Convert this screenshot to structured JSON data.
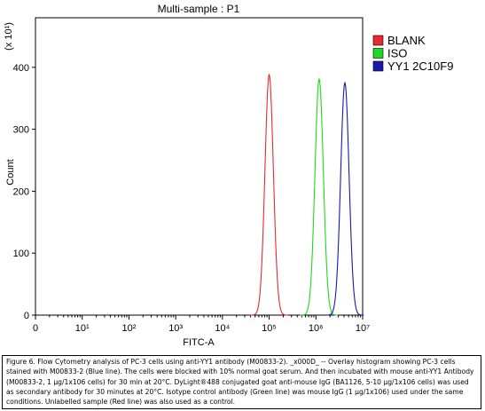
{
  "chart_data": {
    "type": "line",
    "title": "Multi-sample : P1",
    "xlabel": "FITC-A",
    "ylabel": "Count",
    "y_multiplier": "(x 10¹)",
    "xscale": "log",
    "xlim_log10": [
      0,
      7
    ],
    "ylim": [
      0,
      480
    ],
    "x_tick_labels": [
      "0",
      "10¹",
      "10²",
      "10³",
      "10⁴",
      "10⁵",
      "10⁶",
      "10⁷"
    ],
    "y_tick_labels": [
      "0",
      "100",
      "200",
      "300",
      "400"
    ],
    "y_ticks": [
      0,
      100,
      200,
      300,
      400
    ],
    "legend_position": "top-right",
    "series": [
      {
        "name": "BLANK",
        "color": "#e8292b",
        "peak_log10": 5.0,
        "peak_count": 388,
        "width_log10": 0.09
      },
      {
        "name": "ISO",
        "color": "#1fd81f",
        "peak_log10": 6.07,
        "peak_count": 381,
        "width_log10": 0.09
      },
      {
        "name": "YY1 2C10F9",
        "color": "#1a1aa8",
        "peak_log10": 6.62,
        "peak_count": 375,
        "width_log10": 0.09
      }
    ]
  },
  "caption": "Figure 6. Flow Cytometry analysis of PC-3 cells using anti-YY1 antibody (M00833-2). _x000D_ -- Overlay histogram showing PC-3 cells stained with M00833-2 (Blue line). The cells were blocked with 10% normal goat serum. And then incubated with mouse anti-YY1 Antibody (M00833-2, 1 µg/1x106 cells) for 30 min at 20°C. DyLight®488 conjugated goat anti-mouse IgG (BA1126, 5-10 µg/1x106 cells) was used as secondary antibody for 30 minutes at 20°C. Isotype control antibody (Green line) was mouse IgG (1 µg/1x106) used under the same conditions. Unlabelled sample (Red line) was also used as a control."
}
